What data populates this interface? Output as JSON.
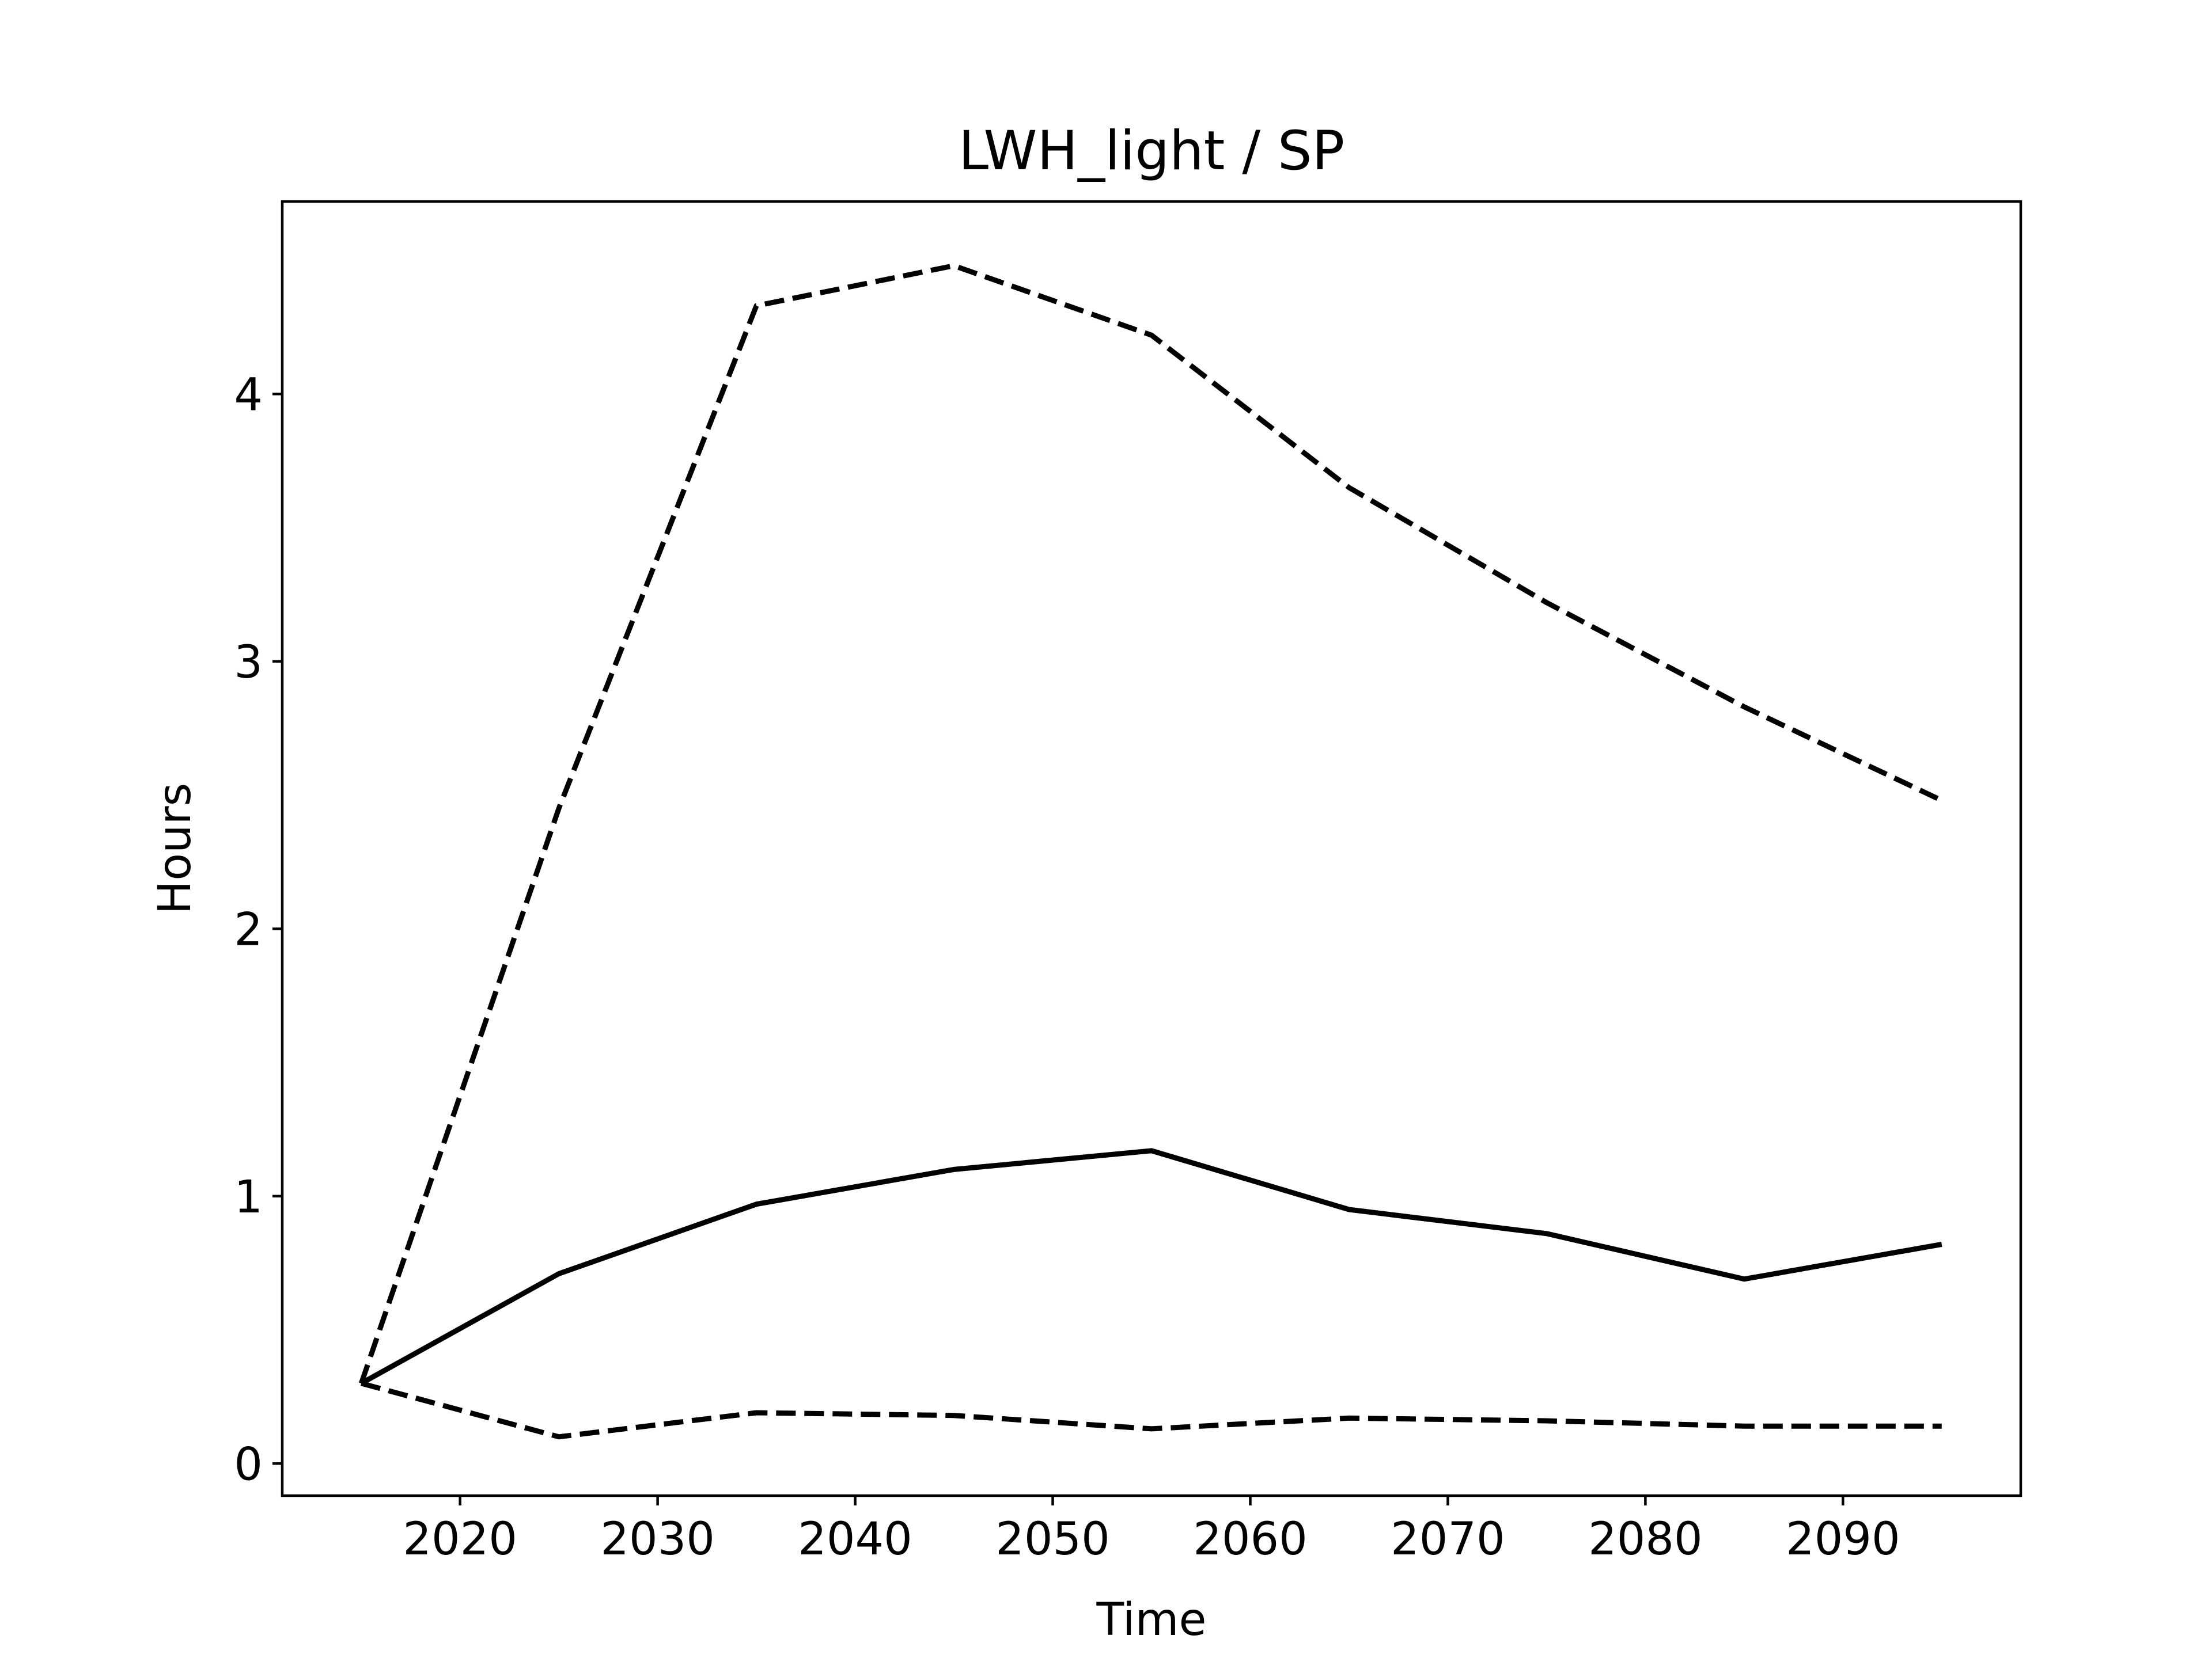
{
  "chart_data": {
    "type": "line",
    "title": "LWH_light / SP",
    "xlabel": "Time",
    "ylabel": "Hours",
    "x": [
      2015,
      2025,
      2035,
      2045,
      2055,
      2065,
      2075,
      2085,
      2095
    ],
    "xlim": [
      2011,
      2099
    ],
    "ylim": [
      -0.12,
      4.72
    ],
    "xticks": [
      2020,
      2030,
      2040,
      2050,
      2060,
      2070,
      2080,
      2090
    ],
    "yticks": [
      0,
      1,
      2,
      3,
      4
    ],
    "grid": false,
    "colors": {
      "line": "#000000",
      "background": "#ffffff"
    },
    "series": [
      {
        "style": "solid",
        "values": [
          0.3,
          0.71,
          0.97,
          1.1,
          1.17,
          0.95,
          0.86,
          0.69,
          0.82
        ]
      },
      {
        "style": "dashed",
        "values": [
          0.3,
          2.45,
          4.33,
          4.48,
          4.22,
          3.65,
          3.22,
          2.83,
          2.48
        ]
      },
      {
        "style": "dashed",
        "values": [
          0.3,
          0.1,
          0.19,
          0.18,
          0.13,
          0.17,
          0.16,
          0.14,
          0.14
        ]
      }
    ]
  }
}
